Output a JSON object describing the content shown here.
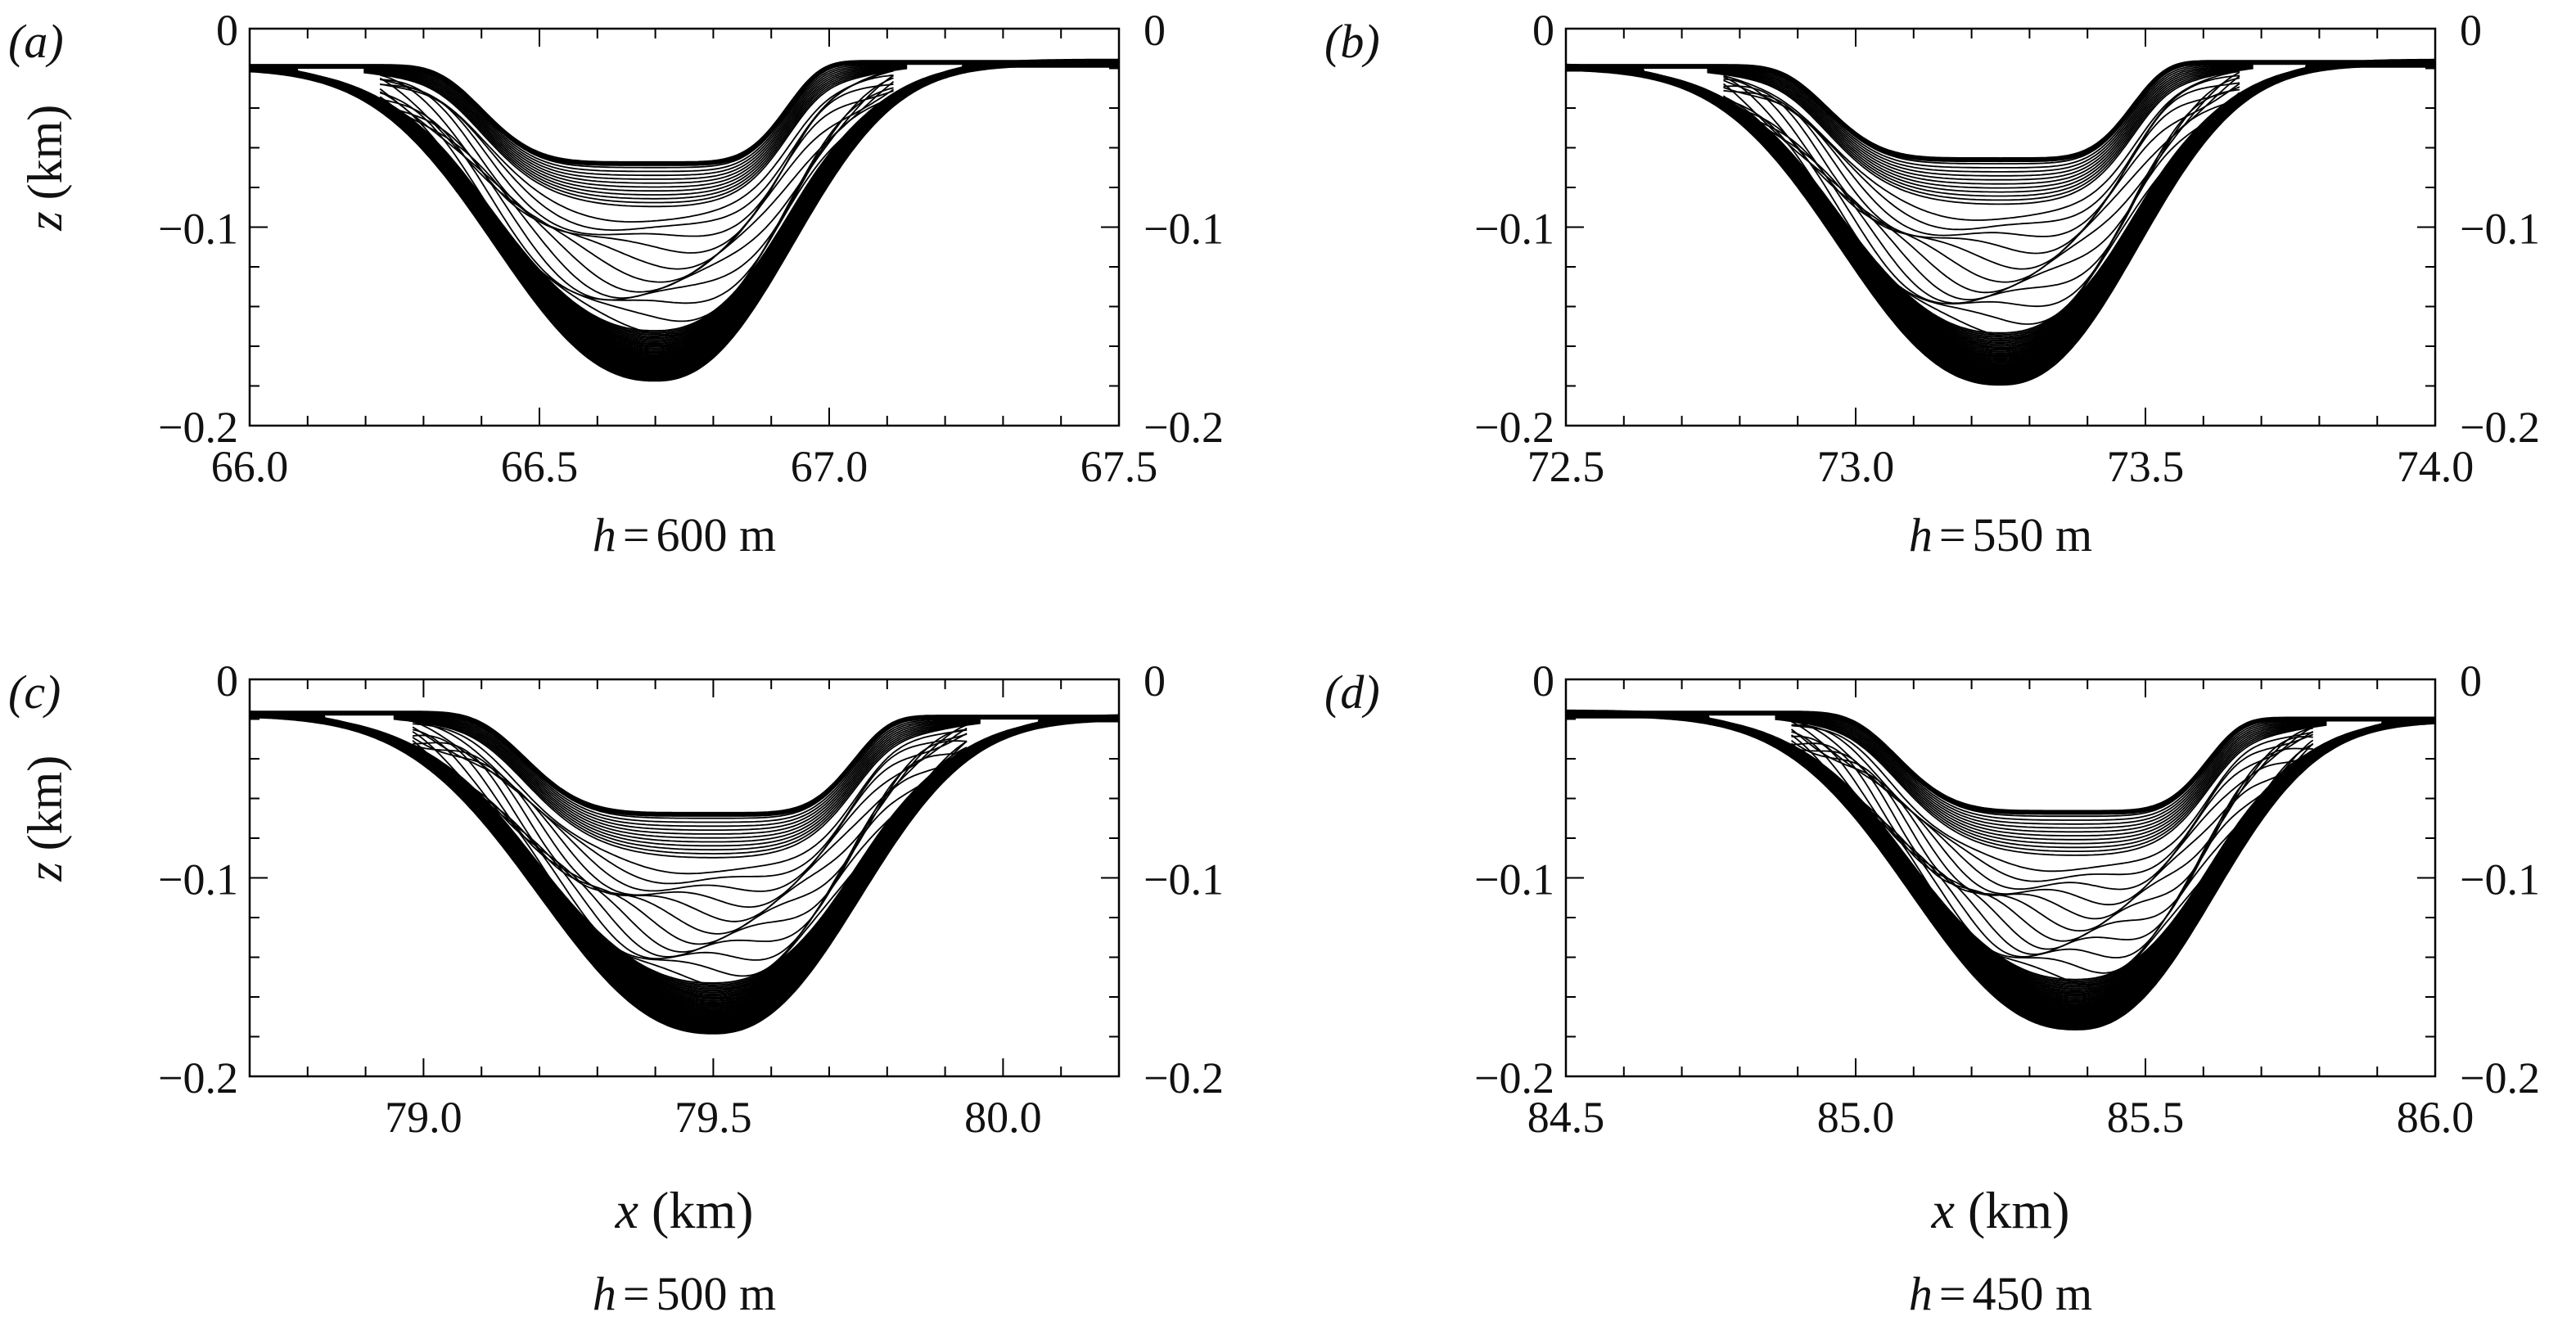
{
  "chart_data": [
    {
      "type": "contour",
      "panel_label": "(a)",
      "caption": "h = 600 m",
      "caption_parts": {
        "variable": "h",
        "equals": "=",
        "value": "600 m"
      },
      "xlabel": "",
      "ylabel": "z (km)",
      "ylabel_parts": {
        "variable": "z",
        "unit": "(km)"
      },
      "xlim": [
        66.0,
        67.5
      ],
      "ylim": [
        -0.2,
        0
      ],
      "xticks": [
        66.0,
        66.5,
        67.0,
        67.5
      ],
      "xtick_labels": [
        "66.0",
        "66.5",
        "67.0",
        "67.5"
      ],
      "yticks": [
        0,
        -0.1,
        -0.2
      ],
      "ytick_labels": [
        "0",
        "−0.1",
        "−0.2"
      ],
      "right_ytick_labels": [
        "0",
        "−0.1",
        "−0.2"
      ],
      "trough": {
        "center_x": 66.7,
        "min_z": -0.176,
        "interface_z": -0.068,
        "edge_left_z": -0.019,
        "edge_right_z": -0.017,
        "left_halfwidth": 0.35,
        "right_halfwidth": 0.3
      },
      "contour_count": 34
    },
    {
      "type": "contour",
      "panel_label": "(b)",
      "caption": "h = 550 m",
      "caption_parts": {
        "variable": "h",
        "equals": "=",
        "value": "550 m"
      },
      "xlabel": "",
      "ylabel": "",
      "xlim": [
        72.5,
        74.0
      ],
      "ylim": [
        -0.2,
        0
      ],
      "xticks": [
        72.5,
        73.0,
        73.5,
        74.0
      ],
      "xtick_labels": [
        "72.5",
        "73.0",
        "73.5",
        "74.0"
      ],
      "yticks": [
        0,
        -0.1,
        -0.2
      ],
      "ytick_labels": [
        "0",
        "−0.1",
        "−0.2"
      ],
      "right_ytick_labels": [
        "0",
        "−0.1",
        "−0.2"
      ],
      "trough": {
        "center_x": 73.25,
        "min_z": -0.178,
        "interface_z": -0.066,
        "edge_left_z": -0.019,
        "edge_right_z": -0.017,
        "left_halfwidth": 0.35,
        "right_halfwidth": 0.3
      },
      "contour_count": 34
    },
    {
      "type": "contour",
      "panel_label": "(c)",
      "caption": "h = 500 m",
      "caption_parts": {
        "variable": "h",
        "equals": "=",
        "value": "500 m"
      },
      "xlabel": "x (km)",
      "xlabel_parts": {
        "variable": "x",
        "unit": "(km)"
      },
      "ylabel": "z (km)",
      "ylabel_parts": {
        "variable": "z",
        "unit": "(km)"
      },
      "xlim": [
        78.7,
        80.2
      ],
      "ylim": [
        -0.2,
        0
      ],
      "xticks": [
        79.0,
        79.5,
        80.0
      ],
      "xtick_labels": [
        "79.0",
        "79.5",
        "80.0"
      ],
      "yticks": [
        0,
        -0.1,
        -0.2
      ],
      "ytick_labels": [
        "0",
        "−0.1",
        "−0.2"
      ],
      "right_ytick_labels": [
        "0",
        "−0.1",
        "−0.2"
      ],
      "trough": {
        "center_x": 79.5,
        "min_z": -0.177,
        "interface_z": -0.068,
        "edge_left_z": -0.017,
        "edge_right_z": -0.019,
        "left_halfwidth": 0.38,
        "right_halfwidth": 0.32
      },
      "contour_count": 34
    },
    {
      "type": "contour",
      "panel_label": "(d)",
      "caption": "h = 450 m",
      "caption_parts": {
        "variable": "h",
        "equals": "=",
        "value": "450 m"
      },
      "xlabel": "x (km)",
      "xlabel_parts": {
        "variable": "x",
        "unit": "(km)"
      },
      "ylabel": "",
      "xlim": [
        84.5,
        86.0
      ],
      "ylim": [
        -0.2,
        0
      ],
      "xticks": [
        84.5,
        85.0,
        85.5,
        86.0
      ],
      "xtick_labels": [
        "84.5",
        "85.0",
        "85.5",
        "86.0"
      ],
      "yticks": [
        0,
        -0.1,
        -0.2
      ],
      "ytick_labels": [
        "0",
        "−0.1",
        "−0.2"
      ],
      "right_ytick_labels": [
        "0",
        "−0.1",
        "−0.2"
      ],
      "trough": {
        "center_x": 85.38,
        "min_z": -0.175,
        "interface_z": -0.067,
        "edge_left_z": -0.017,
        "edge_right_z": -0.02,
        "left_halfwidth": 0.36,
        "right_halfwidth": 0.3
      },
      "contour_count": 34
    }
  ]
}
